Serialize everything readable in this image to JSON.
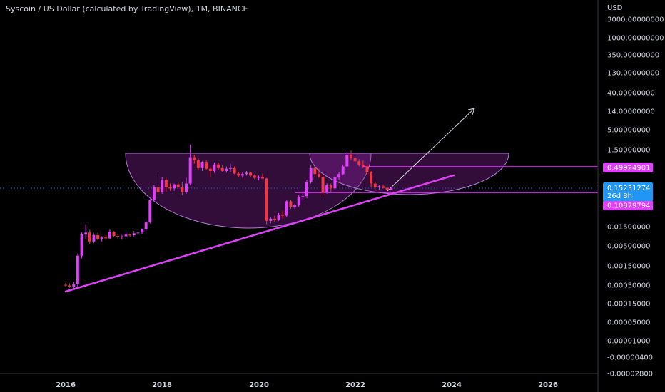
{
  "chart_data": {
    "type": "candlestick",
    "title": "Syscoin / US Dollar (calculated by TradingView), 1M, BINANCE",
    "currency": "USD",
    "scale": "log",
    "y_ticks": [
      "3000.00000000",
      "1000.00000000",
      "350.00000000",
      "130.00000000",
      "40.00000000",
      "14.00000000",
      "5.00000000",
      "1.50000000",
      "0.49924901",
      "0.15231274",
      "0.10879794",
      "0.01500000",
      "0.00500000",
      "0.00150000",
      "0.00050000",
      "0.00015000",
      "0.00005000",
      "0.00001000",
      "-0.00000400",
      "-0.00002800"
    ],
    "x_ticks": [
      "2016",
      "2018",
      "2020",
      "2022",
      "2024",
      "2026"
    ],
    "current_price": {
      "value": "0.15231274",
      "countdown": "26d 8h",
      "color": "#2196f3"
    },
    "level_tags": [
      {
        "value": "0.49924901",
        "color": "#e040fb"
      },
      {
        "value": "0.10879794",
        "color": "#e040fb"
      }
    ],
    "up_color": "#e040fb",
    "down_color": "#f23645",
    "candles": [
      {
        "t": "2016-01",
        "o": 0.0005,
        "h": 0.00056,
        "l": 0.00044,
        "c": 0.00048
      },
      {
        "t": "2016-02",
        "o": 0.00048,
        "h": 0.00055,
        "l": 0.00042,
        "c": 0.00045
      },
      {
        "t": "2016-03",
        "o": 0.00045,
        "h": 0.0006,
        "l": 0.0004,
        "c": 0.00052
      },
      {
        "t": "2016-04",
        "o": 0.00052,
        "h": 0.0032,
        "l": 0.00045,
        "c": 0.0028
      },
      {
        "t": "2016-05",
        "o": 0.0028,
        "h": 0.011,
        "l": 0.0024,
        "c": 0.0098
      },
      {
        "t": "2016-06",
        "o": 0.0098,
        "h": 0.018,
        "l": 0.0075,
        "c": 0.011
      },
      {
        "t": "2016-07",
        "o": 0.011,
        "h": 0.013,
        "l": 0.0055,
        "c": 0.0065
      },
      {
        "t": "2016-08",
        "o": 0.0065,
        "h": 0.0105,
        "l": 0.006,
        "c": 0.0095
      },
      {
        "t": "2016-09",
        "o": 0.0095,
        "h": 0.011,
        "l": 0.007,
        "c": 0.0075
      },
      {
        "t": "2016-10",
        "o": 0.0075,
        "h": 0.0088,
        "l": 0.0065,
        "c": 0.0082
      },
      {
        "t": "2016-11",
        "o": 0.0082,
        "h": 0.0095,
        "l": 0.0072,
        "c": 0.0078
      },
      {
        "t": "2016-12",
        "o": 0.0078,
        "h": 0.013,
        "l": 0.0075,
        "c": 0.0115
      },
      {
        "t": "2017-01",
        "o": 0.0115,
        "h": 0.012,
        "l": 0.0085,
        "c": 0.009
      },
      {
        "t": "2017-02",
        "o": 0.009,
        "h": 0.0102,
        "l": 0.0078,
        "c": 0.0086
      },
      {
        "t": "2017-03",
        "o": 0.0086,
        "h": 0.0095,
        "l": 0.0072,
        "c": 0.0088
      },
      {
        "t": "2017-04",
        "o": 0.0088,
        "h": 0.011,
        "l": 0.0085,
        "c": 0.0097
      },
      {
        "t": "2017-05",
        "o": 0.0097,
        "h": 0.0102,
        "l": 0.0085,
        "c": 0.0094
      },
      {
        "t": "2017-06",
        "o": 0.0094,
        "h": 0.012,
        "l": 0.0088,
        "c": 0.0105
      },
      {
        "t": "2017-07",
        "o": 0.0105,
        "h": 0.0125,
        "l": 0.0095,
        "c": 0.011
      },
      {
        "t": "2017-08",
        "o": 0.011,
        "h": 0.014,
        "l": 0.01,
        "c": 0.0135
      },
      {
        "t": "2017-09",
        "o": 0.0135,
        "h": 0.022,
        "l": 0.012,
        "c": 0.02
      },
      {
        "t": "2017-10",
        "o": 0.02,
        "h": 0.08,
        "l": 0.019,
        "c": 0.075
      },
      {
        "t": "2017-11",
        "o": 0.075,
        "h": 0.18,
        "l": 0.07,
        "c": 0.16
      },
      {
        "t": "2017-12",
        "o": 0.16,
        "h": 0.35,
        "l": 0.1,
        "c": 0.12
      },
      {
        "t": "2018-01",
        "o": 0.12,
        "h": 0.3,
        "l": 0.11,
        "c": 0.25
      },
      {
        "t": "2018-02",
        "o": 0.25,
        "h": 0.28,
        "l": 0.12,
        "c": 0.16
      },
      {
        "t": "2018-03",
        "o": 0.16,
        "h": 0.2,
        "l": 0.13,
        "c": 0.15
      },
      {
        "t": "2018-04",
        "o": 0.15,
        "h": 0.2,
        "l": 0.13,
        "c": 0.19
      },
      {
        "t": "2018-05",
        "o": 0.19,
        "h": 0.21,
        "l": 0.15,
        "c": 0.16
      },
      {
        "t": "2018-06",
        "o": 0.16,
        "h": 0.22,
        "l": 0.1,
        "c": 0.12
      },
      {
        "t": "2018-07",
        "o": 0.12,
        "h": 0.28,
        "l": 0.11,
        "c": 0.2
      },
      {
        "t": "2018-08",
        "o": 0.2,
        "h": 2.0,
        "l": 0.18,
        "c": 0.95
      },
      {
        "t": "2018-09",
        "o": 0.95,
        "h": 1.1,
        "l": 0.65,
        "c": 0.8
      },
      {
        "t": "2018-10",
        "o": 0.8,
        "h": 0.9,
        "l": 0.45,
        "c": 0.5
      },
      {
        "t": "2018-11",
        "o": 0.5,
        "h": 0.75,
        "l": 0.42,
        "c": 0.72
      },
      {
        "t": "2018-12",
        "o": 0.72,
        "h": 0.8,
        "l": 0.45,
        "c": 0.48
      },
      {
        "t": "2019-01",
        "o": 0.48,
        "h": 0.55,
        "l": 0.3,
        "c": 0.42
      },
      {
        "t": "2019-02",
        "o": 0.42,
        "h": 0.7,
        "l": 0.38,
        "c": 0.62
      },
      {
        "t": "2019-03",
        "o": 0.62,
        "h": 0.7,
        "l": 0.45,
        "c": 0.5
      },
      {
        "t": "2019-04",
        "o": 0.5,
        "h": 0.6,
        "l": 0.4,
        "c": 0.42
      },
      {
        "t": "2019-05",
        "o": 0.42,
        "h": 0.55,
        "l": 0.38,
        "c": 0.48
      },
      {
        "t": "2019-06",
        "o": 0.48,
        "h": 0.65,
        "l": 0.4,
        "c": 0.5
      },
      {
        "t": "2019-07",
        "o": 0.5,
        "h": 0.55,
        "l": 0.35,
        "c": 0.36
      },
      {
        "t": "2019-08",
        "o": 0.36,
        "h": 0.4,
        "l": 0.3,
        "c": 0.32
      },
      {
        "t": "2019-09",
        "o": 0.32,
        "h": 0.38,
        "l": 0.28,
        "c": 0.35
      },
      {
        "t": "2019-10",
        "o": 0.35,
        "h": 0.42,
        "l": 0.32,
        "c": 0.38
      },
      {
        "t": "2019-11",
        "o": 0.38,
        "h": 0.4,
        "l": 0.3,
        "c": 0.32
      },
      {
        "t": "2019-12",
        "o": 0.32,
        "h": 0.34,
        "l": 0.26,
        "c": 0.28
      },
      {
        "t": "2020-01",
        "o": 0.28,
        "h": 0.32,
        "l": 0.24,
        "c": 0.3
      },
      {
        "t": "2020-02",
        "o": 0.3,
        "h": 0.36,
        "l": 0.26,
        "c": 0.27
      },
      {
        "t": "2020-03",
        "o": 0.27,
        "h": 0.28,
        "l": 0.018,
        "c": 0.022
      },
      {
        "t": "2020-04",
        "o": 0.022,
        "h": 0.028,
        "l": 0.019,
        "c": 0.025
      },
      {
        "t": "2020-05",
        "o": 0.025,
        "h": 0.03,
        "l": 0.021,
        "c": 0.023
      },
      {
        "t": "2020-06",
        "o": 0.023,
        "h": 0.035,
        "l": 0.022,
        "c": 0.032
      },
      {
        "t": "2020-07",
        "o": 0.032,
        "h": 0.04,
        "l": 0.025,
        "c": 0.03
      },
      {
        "t": "2020-08",
        "o": 0.03,
        "h": 0.075,
        "l": 0.028,
        "c": 0.07
      },
      {
        "t": "2020-09",
        "o": 0.07,
        "h": 0.075,
        "l": 0.045,
        "c": 0.05
      },
      {
        "t": "2020-10",
        "o": 0.05,
        "h": 0.06,
        "l": 0.045,
        "c": 0.055
      },
      {
        "t": "2020-11",
        "o": 0.055,
        "h": 0.1,
        "l": 0.05,
        "c": 0.09
      },
      {
        "t": "2020-12",
        "o": 0.09,
        "h": 0.13,
        "l": 0.075,
        "c": 0.095
      },
      {
        "t": "2021-01",
        "o": 0.095,
        "h": 0.25,
        "l": 0.085,
        "c": 0.22
      },
      {
        "t": "2021-02",
        "o": 0.22,
        "h": 0.6,
        "l": 0.2,
        "c": 0.5
      },
      {
        "t": "2021-03",
        "o": 0.5,
        "h": 0.55,
        "l": 0.3,
        "c": 0.35
      },
      {
        "t": "2021-04",
        "o": 0.35,
        "h": 0.48,
        "l": 0.28,
        "c": 0.3
      },
      {
        "t": "2021-05",
        "o": 0.3,
        "h": 0.32,
        "l": 0.1,
        "c": 0.12
      },
      {
        "t": "2021-06",
        "o": 0.12,
        "h": 0.2,
        "l": 0.11,
        "c": 0.18
      },
      {
        "t": "2021-07",
        "o": 0.18,
        "h": 0.2,
        "l": 0.12,
        "c": 0.15
      },
      {
        "t": "2021-08",
        "o": 0.15,
        "h": 0.35,
        "l": 0.14,
        "c": 0.3
      },
      {
        "t": "2021-09",
        "o": 0.3,
        "h": 0.4,
        "l": 0.25,
        "c": 0.35
      },
      {
        "t": "2021-10",
        "o": 0.35,
        "h": 0.6,
        "l": 0.33,
        "c": 0.55
      },
      {
        "t": "2021-11",
        "o": 0.55,
        "h": 1.3,
        "l": 0.5,
        "c": 1.1
      },
      {
        "t": "2021-12",
        "o": 1.1,
        "h": 1.4,
        "l": 0.8,
        "c": 0.9
      },
      {
        "t": "2022-01",
        "o": 0.9,
        "h": 1.0,
        "l": 0.65,
        "c": 0.75
      },
      {
        "t": "2022-02",
        "o": 0.75,
        "h": 0.85,
        "l": 0.55,
        "c": 0.6
      },
      {
        "t": "2022-03",
        "o": 0.6,
        "h": 0.78,
        "l": 0.5,
        "c": 0.55
      },
      {
        "t": "2022-04",
        "o": 0.55,
        "h": 0.6,
        "l": 0.35,
        "c": 0.4
      },
      {
        "t": "2022-05",
        "o": 0.4,
        "h": 0.42,
        "l": 0.16,
        "c": 0.2
      },
      {
        "t": "2022-06",
        "o": 0.2,
        "h": 0.22,
        "l": 0.13,
        "c": 0.16
      },
      {
        "t": "2022-07",
        "o": 0.16,
        "h": 0.18,
        "l": 0.14,
        "c": 0.17
      },
      {
        "t": "2022-08",
        "o": 0.17,
        "h": 0.19,
        "l": 0.15,
        "c": 0.155
      },
      {
        "t": "2022-09",
        "o": 0.155,
        "h": 0.16,
        "l": 0.13,
        "c": 0.14
      },
      {
        "t": "2022-10",
        "o": 0.14,
        "h": 0.16,
        "l": 0.135,
        "c": 0.152
      }
    ]
  }
}
